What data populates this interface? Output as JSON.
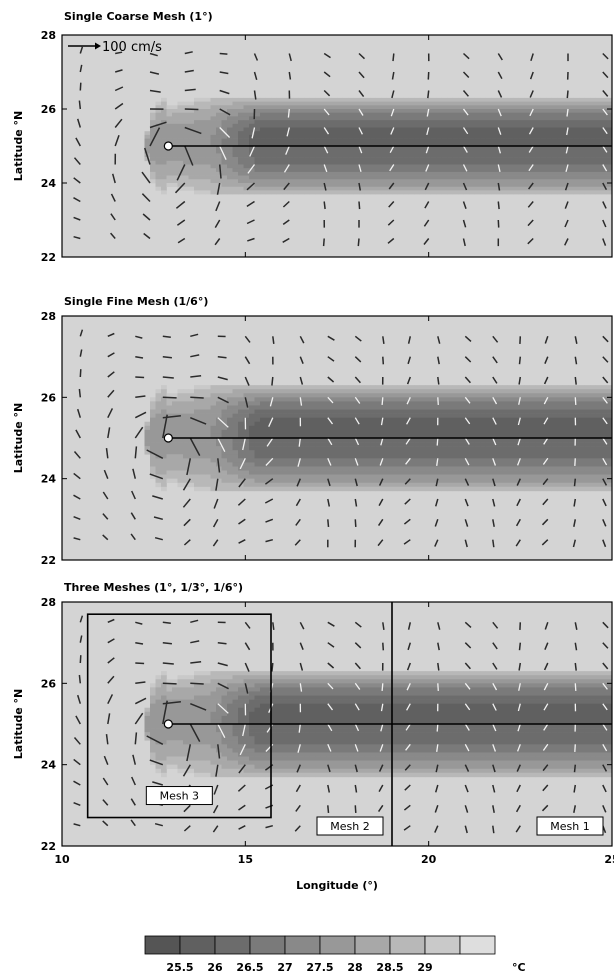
{
  "figure": {
    "xlabel": "Longitude (°)",
    "ylabel": "Latitude °N",
    "xlim": [
      10,
      25
    ],
    "ylim": [
      22,
      28
    ],
    "xticks": [
      10,
      15,
      20,
      25
    ],
    "yticks": [
      22,
      24,
      26,
      28
    ]
  },
  "chart_data": [
    {
      "type": "heatmap",
      "title": "Single Coarse Mesh (1°)",
      "xlabel": "",
      "ylabel": "Latitude °N",
      "xlim": [
        10,
        25
      ],
      "ylim": [
        22,
        28
      ],
      "vector_scale_label": "100 cm/s",
      "track": {
        "x": [
          12.9,
          25
        ],
        "y": [
          25,
          25
        ]
      },
      "warm_pool": {
        "x0": 12.9,
        "y0": 25.0,
        "half_width": 1.35,
        "cold_core": 25.5
      },
      "mesh_boxes": []
    },
    {
      "type": "heatmap",
      "title": "Single Fine Mesh (1/6°)",
      "xlabel": "",
      "ylabel": "Latitude °N",
      "xlim": [
        10,
        25
      ],
      "ylim": [
        22,
        28
      ],
      "track": {
        "x": [
          12.9,
          25
        ],
        "y": [
          25,
          25
        ]
      },
      "warm_pool": {
        "x0": 12.9,
        "y0": 25.0,
        "half_width": 1.35,
        "cold_core": 25.5
      },
      "mesh_boxes": []
    },
    {
      "type": "heatmap",
      "title": "Three Meshes (1°, 1/3°, 1/6°)",
      "xlabel": "Longitude (°)",
      "ylabel": "Latitude °N",
      "xlim": [
        10,
        25
      ],
      "ylim": [
        22,
        28
      ],
      "track": {
        "x": [
          12.9,
          25
        ],
        "y": [
          25,
          25
        ]
      },
      "warm_pool": {
        "x0": 12.9,
        "y0": 25.0,
        "half_width": 1.35,
        "cold_core": 25.5
      },
      "mesh_boxes": [
        {
          "label": "Mesh 3",
          "x": [
            10.7,
            15.7
          ],
          "y": [
            22.7,
            27.7
          ]
        },
        {
          "label": "Mesh 2",
          "x": [
            10.0,
            19.0
          ],
          "y": [
            22.0,
            28.0
          ]
        },
        {
          "label": "Mesh 1",
          "x": [
            19.0,
            25.0
          ],
          "y": [
            22.0,
            28.0
          ]
        }
      ]
    }
  ],
  "colorbar": {
    "levels": [
      "25.5",
      "26",
      "26.5",
      "27",
      "27.5",
      "28",
      "28.5",
      "29"
    ],
    "unit": "°C",
    "colors": [
      "#555555",
      "#606060",
      "#6c6c6c",
      "#7a7a7a",
      "#898989",
      "#989898",
      "#a8a8a8",
      "#b8b8b8",
      "#c9c9c9",
      "#dedede"
    ]
  },
  "style": {
    "ambient_color": "#d4d4d4",
    "arrow_dark": "#2a2a2a",
    "arrow_light": "#f2f2f2"
  }
}
